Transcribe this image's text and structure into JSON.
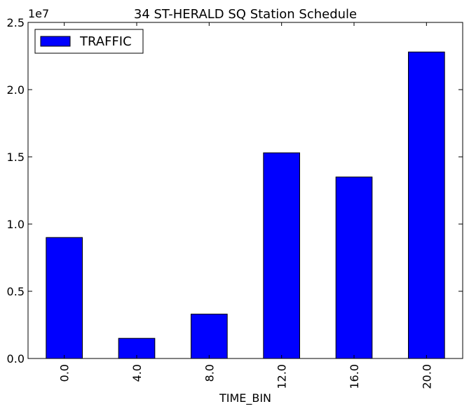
{
  "chart_data": {
    "type": "bar",
    "title": "34 ST-HERALD SQ Station Schedule",
    "xlabel": "TIME_BIN",
    "ylabel": "",
    "categories": [
      "0.0",
      "4.0",
      "8.0",
      "12.0",
      "16.0",
      "20.0"
    ],
    "series": [
      {
        "name": "TRAFFIC",
        "values": [
          9000000,
          1500000,
          3300000,
          15300000,
          13500000,
          22800000
        ],
        "color": "#0000ff"
      }
    ],
    "ylim": [
      0,
      25000000
    ],
    "yticks": [
      "0.0",
      "0.5",
      "1.0",
      "1.5",
      "2.0",
      "2.5"
    ],
    "yticks_values": [
      0,
      5000000,
      10000000,
      15000000,
      20000000,
      25000000
    ],
    "y_scale_label": "1e7",
    "legend_position": "top-left",
    "grid": false
  }
}
